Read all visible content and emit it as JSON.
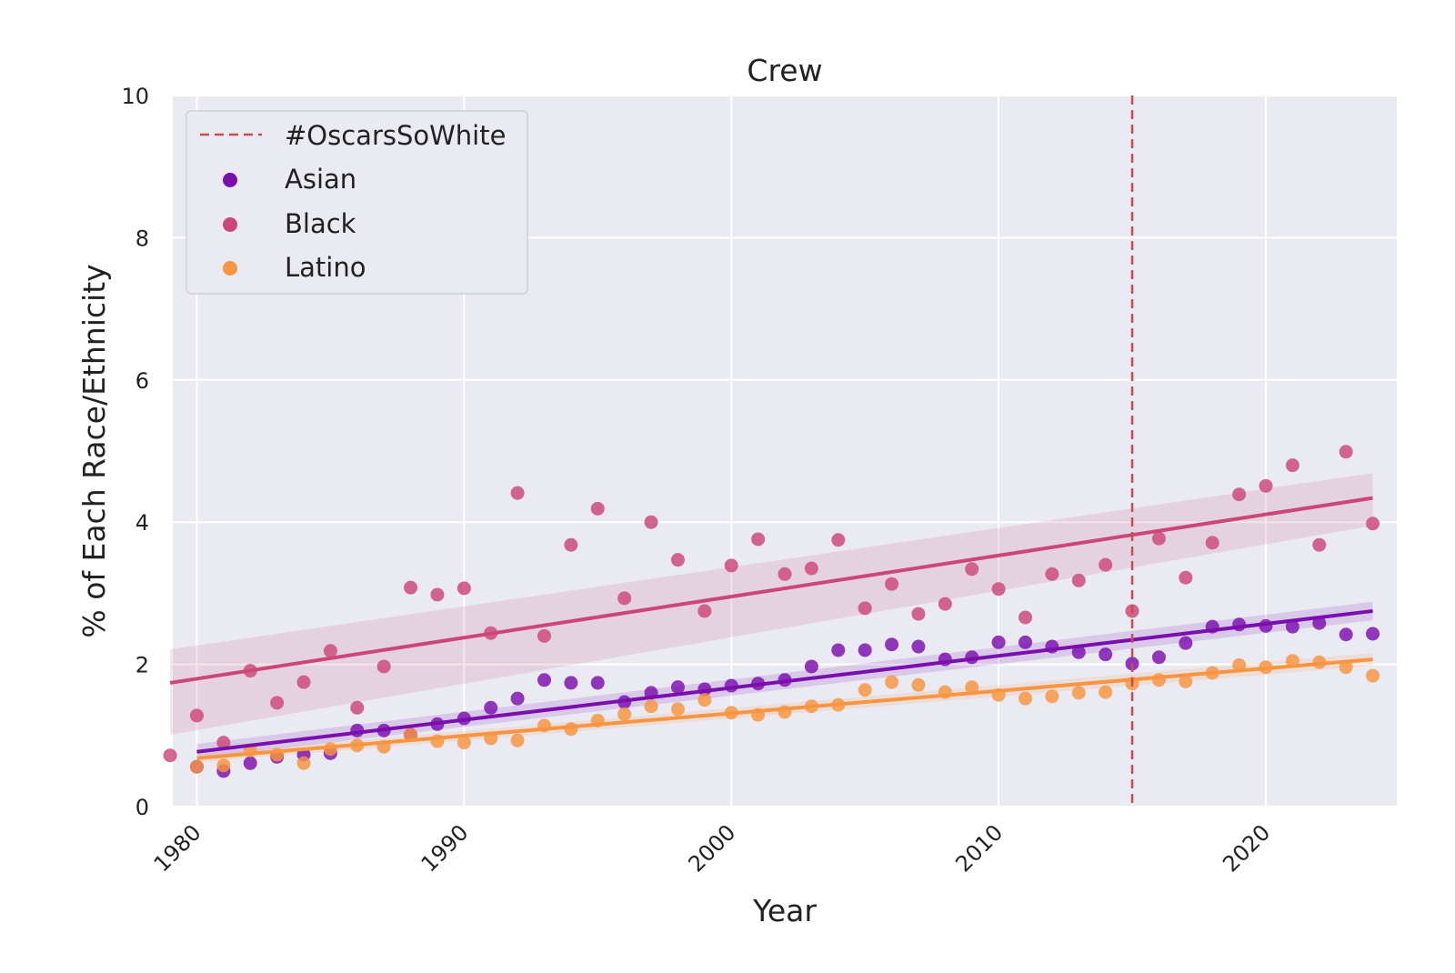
{
  "chart_data": {
    "type": "scatter",
    "title": "Crew",
    "xlabel": "Year",
    "ylabel": "% of Each Race/Ethnicity",
    "xlim": [
      1979.1,
      2024.9
    ],
    "ylim": [
      0,
      10
    ],
    "xticks": [
      1980,
      1990,
      2000,
      2010,
      2020
    ],
    "yticks": [
      0,
      2,
      4,
      6,
      8,
      10
    ],
    "grid": true,
    "background": "#eaeaf2",
    "legend_position": "top-left",
    "vline": {
      "x": 2015,
      "label": "#OscarsSoWhite",
      "color": "#c44e52",
      "style": "dashed"
    },
    "series": [
      {
        "name": "Asian",
        "color": "#7b0fae",
        "x": [
          1980,
          1981,
          1982,
          1983,
          1984,
          1985,
          1986,
          1987,
          1988,
          1989,
          1990,
          1991,
          1992,
          1993,
          1994,
          1995,
          1996,
          1997,
          1998,
          1999,
          2000,
          2001,
          2002,
          2003,
          2004,
          2005,
          2006,
          2007,
          2008,
          2009,
          2010,
          2011,
          2012,
          2013,
          2014,
          2015,
          2016,
          2017,
          2018,
          2019,
          2020,
          2021,
          2022,
          2023,
          2024
        ],
        "y": [
          0.56,
          0.5,
          0.61,
          0.7,
          0.73,
          0.75,
          1.07,
          1.07,
          1.01,
          1.16,
          1.24,
          1.39,
          1.52,
          1.78,
          1.74,
          1.74,
          1.47,
          1.6,
          1.68,
          1.65,
          1.7,
          1.73,
          1.78,
          1.97,
          2.2,
          2.2,
          2.28,
          2.25,
          2.07,
          2.1,
          2.31,
          2.31,
          2.25,
          2.17,
          2.14,
          2.01,
          2.1,
          2.3,
          2.53,
          2.56,
          2.54,
          2.53,
          2.58,
          2.42,
          2.43
        ],
        "fit": {
          "x": [
            1980,
            2024
          ],
          "y": [
            0.77,
            2.75
          ],
          "ci_low": [
            0.68,
            2.62
          ],
          "ci_high": [
            0.88,
            2.88
          ]
        }
      },
      {
        "name": "Black",
        "color": "#cc4778",
        "x": [
          1979,
          1980,
          1981,
          1982,
          1983,
          1984,
          1985,
          1986,
          1987,
          1988,
          1989,
          1990,
          1991,
          1992,
          1993,
          1994,
          1995,
          1996,
          1997,
          1998,
          1999,
          2000,
          2001,
          2002,
          2003,
          2004,
          2005,
          2006,
          2007,
          2008,
          2009,
          2010,
          2011,
          2012,
          2013,
          2014,
          2015,
          2016,
          2017,
          2018,
          2019,
          2020,
          2021,
          2022,
          2023,
          2024
        ],
        "y": [
          0.72,
          1.28,
          0.9,
          1.91,
          1.46,
          1.75,
          2.19,
          1.39,
          1.97,
          3.08,
          2.98,
          3.07,
          2.44,
          4.41,
          2.4,
          3.68,
          4.19,
          2.93,
          4.0,
          3.47,
          2.75,
          3.39,
          3.76,
          3.27,
          3.35,
          3.75,
          2.79,
          3.13,
          2.71,
          2.85,
          3.34,
          3.06,
          2.66,
          3.27,
          3.18,
          3.4,
          2.75,
          3.77,
          3.22,
          3.71,
          4.39,
          4.51,
          4.8,
          3.68,
          4.99,
          3.98
        ],
        "fit": {
          "x": [
            1979,
            2024
          ],
          "y": [
            1.74,
            4.34
          ],
          "ci_low": [
            1.01,
            3.95
          ],
          "ci_high": [
            2.21,
            4.69
          ]
        }
      },
      {
        "name": "Latino",
        "color": "#f89540",
        "x": [
          1980,
          1981,
          1982,
          1983,
          1984,
          1985,
          1986,
          1987,
          1988,
          1989,
          1990,
          1991,
          1992,
          1993,
          1994,
          1995,
          1996,
          1997,
          1998,
          1999,
          2000,
          2001,
          2002,
          2003,
          2004,
          2005,
          2006,
          2007,
          2008,
          2009,
          2010,
          2011,
          2012,
          2013,
          2014,
          2015,
          2016,
          2017,
          2018,
          2019,
          2020,
          2021,
          2022,
          2023,
          2024
        ],
        "y": [
          0.56,
          0.58,
          0.79,
          0.73,
          0.61,
          0.81,
          0.86,
          0.84,
          1.01,
          0.92,
          0.9,
          0.96,
          0.93,
          1.14,
          1.09,
          1.21,
          1.3,
          1.41,
          1.37,
          1.5,
          1.32,
          1.29,
          1.33,
          1.41,
          1.43,
          1.64,
          1.75,
          1.71,
          1.61,
          1.68,
          1.57,
          1.52,
          1.55,
          1.6,
          1.61,
          1.73,
          1.78,
          1.76,
          1.88,
          1.99,
          1.96,
          2.05,
          2.03,
          1.96,
          1.84
        ],
        "fit": {
          "x": [
            1980,
            2024
          ],
          "y": [
            0.68,
            2.07
          ],
          "ci_low": [
            0.62,
            1.98
          ],
          "ci_high": [
            0.74,
            2.16
          ]
        }
      }
    ]
  }
}
